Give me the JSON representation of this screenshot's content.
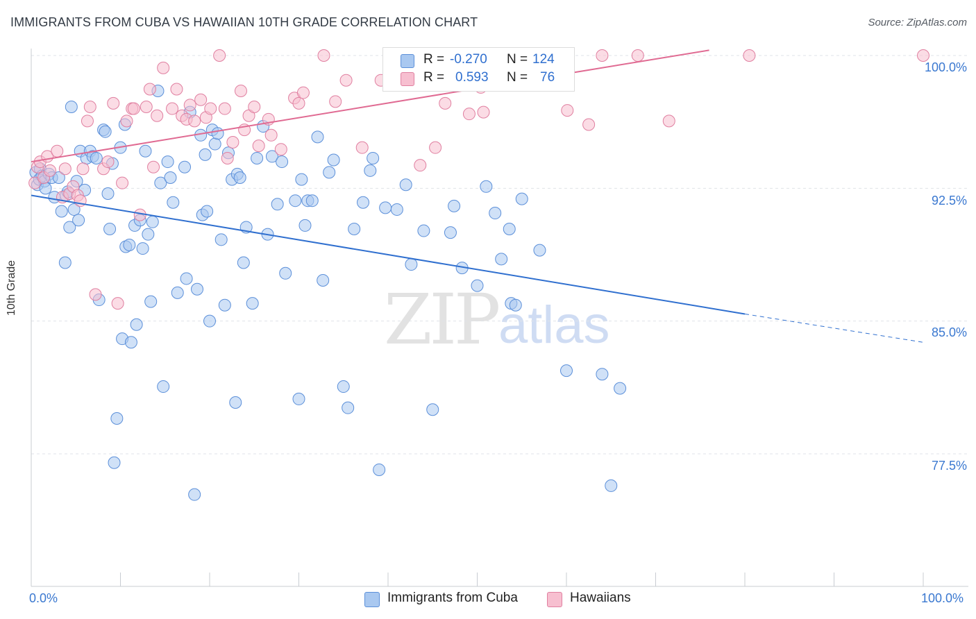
{
  "title": "IMMIGRANTS FROM CUBA VS HAWAIIAN 10TH GRADE CORRELATION CHART",
  "source": "Source: ZipAtlas.com",
  "watermark": {
    "zip": "ZIP",
    "atlas": "atlas"
  },
  "legend": {
    "rows": [
      {
        "r_label": "R =",
        "r_value": "-0.270",
        "n_label": "N =",
        "n_value": "124",
        "color": "#a9c8f0"
      },
      {
        "r_label": "R =",
        "r_value": "0.593",
        "n_label": "N =",
        "n_value": "76",
        "color": "#f7bfd0"
      }
    ]
  },
  "bottom_legend": [
    {
      "label": "Immigrants from Cuba",
      "color": "#a9c8f0"
    },
    {
      "label": "Hawaiians",
      "color": "#f7bfd0"
    }
  ],
  "chart_data": {
    "type": "scatter",
    "title": "IMMIGRANTS FROM CUBA VS HAWAIIAN 10TH GRADE CORRELATION CHART",
    "xlabel": "",
    "ylabel": "10th Grade",
    "xlim": [
      0,
      100
    ],
    "ylim": [
      70.5,
      100.6
    ],
    "x_tick_labels": [
      "0.0%",
      "100.0%"
    ],
    "y_ticks": [
      77.5,
      85.0,
      92.5,
      100.0
    ],
    "y_tick_labels": [
      "77.5%",
      "85.0%",
      "92.5%",
      "100.0%"
    ],
    "grid": true,
    "series": [
      {
        "name": "Immigrants from Cuba",
        "color": "#5b8fd9",
        "fill": "#a9c8f0",
        "points": [
          [
            0.5,
            93.4
          ],
          [
            0.7,
            92.7
          ],
          [
            0.9,
            93.0
          ],
          [
            1.0,
            93.6
          ],
          [
            1.2,
            93.2
          ],
          [
            1.5,
            92.9
          ],
          [
            1.6,
            92.5
          ],
          [
            2.0,
            93.3
          ],
          [
            2.3,
            93.1
          ],
          [
            2.6,
            92.0
          ],
          [
            3.1,
            93.1
          ],
          [
            3.4,
            91.2
          ],
          [
            3.8,
            88.3
          ],
          [
            3.9,
            92.1
          ],
          [
            4.1,
            92.3
          ],
          [
            4.3,
            90.3
          ],
          [
            4.5,
            97.1
          ],
          [
            4.8,
            91.3
          ],
          [
            5.1,
            92.9
          ],
          [
            5.3,
            90.7
          ],
          [
            5.5,
            94.6
          ],
          [
            6.0,
            92.4
          ],
          [
            6.2,
            94.2
          ],
          [
            6.6,
            94.6
          ],
          [
            6.9,
            94.3
          ],
          [
            7.3,
            94.2
          ],
          [
            7.6,
            86.2
          ],
          [
            8.1,
            95.8
          ],
          [
            8.3,
            95.7
          ],
          [
            8.6,
            92.2
          ],
          [
            8.8,
            90.2
          ],
          [
            9.1,
            93.9
          ],
          [
            9.3,
            77.0
          ],
          [
            9.6,
            79.5
          ],
          [
            10.0,
            94.8
          ],
          [
            10.2,
            84.0
          ],
          [
            10.5,
            96.1
          ],
          [
            10.6,
            89.2
          ],
          [
            11.0,
            89.3
          ],
          [
            11.2,
            83.8
          ],
          [
            11.6,
            90.4
          ],
          [
            11.8,
            84.8
          ],
          [
            12.2,
            90.7
          ],
          [
            12.5,
            89.1
          ],
          [
            12.8,
            94.6
          ],
          [
            13.1,
            89.9
          ],
          [
            13.4,
            86.1
          ],
          [
            13.6,
            90.6
          ],
          [
            14.2,
            98.0
          ],
          [
            14.5,
            92.8
          ],
          [
            14.8,
            81.3
          ],
          [
            15.3,
            94.0
          ],
          [
            15.6,
            93.1
          ],
          [
            15.9,
            91.7
          ],
          [
            16.4,
            86.6
          ],
          [
            17.2,
            93.7
          ],
          [
            17.4,
            87.4
          ],
          [
            17.8,
            96.8
          ],
          [
            18.3,
            75.2
          ],
          [
            18.6,
            86.8
          ],
          [
            19.0,
            95.5
          ],
          [
            19.2,
            91.0
          ],
          [
            19.5,
            94.4
          ],
          [
            19.7,
            91.2
          ],
          [
            20.0,
            85.0
          ],
          [
            20.3,
            95.8
          ],
          [
            20.6,
            95.0
          ],
          [
            20.9,
            95.6
          ],
          [
            21.3,
            89.6
          ],
          [
            21.7,
            85.9
          ],
          [
            22.1,
            94.5
          ],
          [
            22.5,
            93.0
          ],
          [
            22.9,
            80.4
          ],
          [
            23.1,
            93.3
          ],
          [
            23.4,
            93.1
          ],
          [
            23.8,
            88.3
          ],
          [
            24.1,
            90.3
          ],
          [
            24.8,
            86.0
          ],
          [
            25.3,
            94.2
          ],
          [
            26.0,
            96.0
          ],
          [
            26.5,
            89.9
          ],
          [
            27.0,
            94.3
          ],
          [
            27.6,
            91.6
          ],
          [
            28.1,
            94.0
          ],
          [
            28.5,
            87.7
          ],
          [
            29.6,
            91.8
          ],
          [
            30.0,
            80.6
          ],
          [
            30.3,
            93.0
          ],
          [
            30.7,
            90.4
          ],
          [
            31.0,
            91.8
          ],
          [
            31.5,
            91.8
          ],
          [
            32.1,
            95.4
          ],
          [
            32.7,
            87.3
          ],
          [
            33.4,
            93.4
          ],
          [
            33.9,
            94.1
          ],
          [
            35.0,
            81.3
          ],
          [
            35.5,
            80.1
          ],
          [
            36.2,
            90.2
          ],
          [
            37.2,
            91.7
          ],
          [
            38.0,
            93.5
          ],
          [
            38.3,
            94.2
          ],
          [
            39.0,
            76.6
          ],
          [
            39.7,
            91.4
          ],
          [
            41.0,
            91.3
          ],
          [
            42.0,
            92.7
          ],
          [
            42.6,
            88.2
          ],
          [
            44.0,
            90.1
          ],
          [
            45.0,
            80.0
          ],
          [
            47.0,
            90.0
          ],
          [
            47.4,
            91.5
          ],
          [
            48.3,
            88.0
          ],
          [
            50.0,
            87.0
          ],
          [
            51.0,
            92.6
          ],
          [
            52.0,
            91.1
          ],
          [
            52.7,
            88.5
          ],
          [
            53.6,
            90.2
          ],
          [
            53.8,
            86.0
          ],
          [
            54.3,
            85.9
          ],
          [
            55.0,
            91.9
          ],
          [
            57.0,
            89.0
          ],
          [
            60.0,
            82.2
          ],
          [
            64.0,
            82.0
          ],
          [
            65.0,
            75.7
          ],
          [
            66.0,
            81.2
          ]
        ]
      },
      {
        "name": "Hawaiians",
        "color": "#e07fa0",
        "fill": "#f7bfd0",
        "points": [
          [
            0.4,
            92.8
          ],
          [
            0.7,
            93.7
          ],
          [
            1.0,
            94.0
          ],
          [
            1.4,
            93.1
          ],
          [
            1.8,
            94.3
          ],
          [
            2.1,
            93.5
          ],
          [
            2.9,
            94.6
          ],
          [
            3.5,
            92.0
          ],
          [
            3.8,
            93.6
          ],
          [
            4.3,
            92.2
          ],
          [
            4.7,
            92.6
          ],
          [
            5.2,
            92.1
          ],
          [
            5.5,
            91.8
          ],
          [
            5.8,
            93.6
          ],
          [
            6.3,
            96.3
          ],
          [
            6.6,
            97.1
          ],
          [
            7.2,
            86.5
          ],
          [
            8.1,
            93.6
          ],
          [
            8.6,
            94.0
          ],
          [
            9.2,
            97.3
          ],
          [
            9.7,
            86.0
          ],
          [
            10.2,
            92.8
          ],
          [
            10.7,
            96.3
          ],
          [
            11.3,
            97.0
          ],
          [
            11.5,
            97.0
          ],
          [
            12.2,
            91.0
          ],
          [
            12.9,
            97.1
          ],
          [
            13.3,
            98.1
          ],
          [
            13.7,
            93.7
          ],
          [
            14.1,
            96.6
          ],
          [
            14.8,
            99.3
          ],
          [
            15.8,
            97.0
          ],
          [
            16.3,
            98.1
          ],
          [
            16.9,
            96.6
          ],
          [
            17.4,
            96.4
          ],
          [
            17.8,
            97.2
          ],
          [
            18.3,
            96.3
          ],
          [
            19.0,
            97.5
          ],
          [
            19.6,
            96.5
          ],
          [
            20.1,
            97.0
          ],
          [
            21.1,
            100.0
          ],
          [
            21.7,
            97.0
          ],
          [
            22.0,
            94.2
          ],
          [
            22.6,
            95.1
          ],
          [
            23.5,
            98.0
          ],
          [
            23.9,
            95.8
          ],
          [
            24.4,
            96.6
          ],
          [
            25.0,
            97.1
          ],
          [
            25.5,
            94.9
          ],
          [
            26.6,
            96.4
          ],
          [
            26.9,
            95.5
          ],
          [
            28.0,
            94.7
          ],
          [
            29.5,
            97.6
          ],
          [
            30.0,
            97.3
          ],
          [
            30.5,
            97.9
          ],
          [
            32.8,
            100.0
          ],
          [
            34.1,
            97.4
          ],
          [
            35.3,
            98.6
          ],
          [
            37.1,
            94.8
          ],
          [
            39.2,
            98.6
          ],
          [
            40.8,
            100.0
          ],
          [
            43.6,
            93.8
          ],
          [
            45.3,
            94.8
          ],
          [
            46.4,
            97.3
          ],
          [
            49.1,
            96.7
          ],
          [
            50.4,
            98.2
          ],
          [
            50.7,
            96.8
          ],
          [
            51.5,
            100.0
          ],
          [
            54.4,
            100.0
          ],
          [
            60.1,
            96.9
          ],
          [
            62.5,
            96.1
          ],
          [
            64.0,
            100.0
          ],
          [
            68.0,
            100.0
          ],
          [
            71.5,
            96.3
          ],
          [
            80.5,
            100.0
          ],
          [
            100.0,
            100.0
          ]
        ]
      }
    ],
    "trendlines": [
      {
        "series": "Immigrants from Cuba",
        "x0": 0,
        "y0": 92.1,
        "x1": 80,
        "y1": 85.4,
        "dashed_to": 100,
        "dashed_y": 83.8
      },
      {
        "series": "Hawaiians",
        "x0": 0,
        "y0": 94.0,
        "x1": 76,
        "y1": 100.3
      }
    ]
  }
}
